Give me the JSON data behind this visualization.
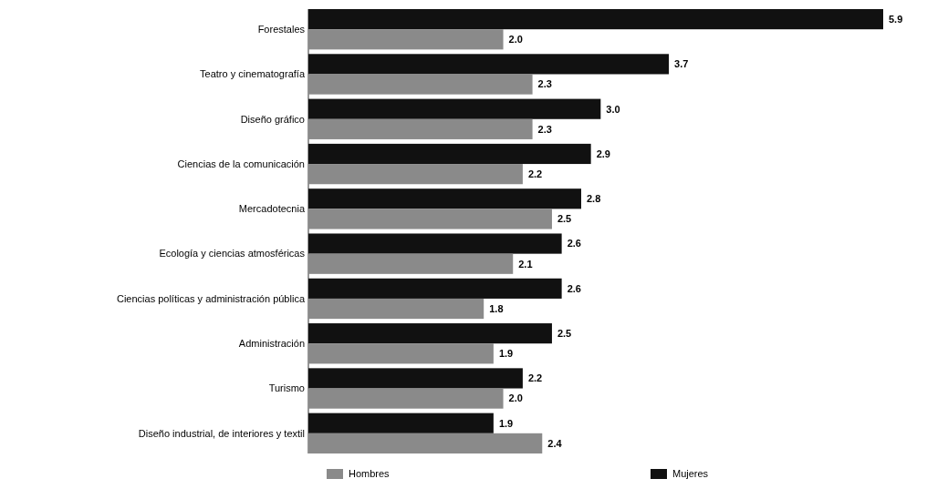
{
  "chart_data": {
    "type": "bar",
    "orientation": "horizontal",
    "categories": [
      "Forestales",
      "Teatro y cinematografía",
      "Diseño gráfico",
      "Ciencias de la comunicación",
      "Mercadotecnia",
      "Ecología y ciencias atmosféricas",
      "Ciencias políticas y administración pública",
      "Administración",
      "Turismo",
      "Diseño industrial, de interiores y textil"
    ],
    "series": [
      {
        "name": "Mujeres",
        "color": "#111111",
        "values": [
          5.9,
          3.7,
          3.0,
          2.9,
          2.8,
          2.6,
          2.6,
          2.5,
          2.2,
          1.9
        ],
        "value_labels": [
          "5.9",
          "3.7",
          "3.0",
          "2.9",
          "2.8",
          "2.6",
          "2.6",
          "2.5",
          "2.2",
          "1.9"
        ]
      },
      {
        "name": "Hombres",
        "color": "#8a8a8a",
        "values": [
          2.0,
          2.3,
          2.3,
          2.2,
          2.5,
          2.1,
          1.8,
          1.9,
          2.0,
          2.4
        ],
        "value_labels": [
          "2.0",
          "2.3",
          "2.3",
          "2.2",
          "2.5",
          "2.1",
          "1.8",
          "1.9",
          "2.0",
          "2.4"
        ]
      }
    ],
    "legend": "bottom"
  }
}
